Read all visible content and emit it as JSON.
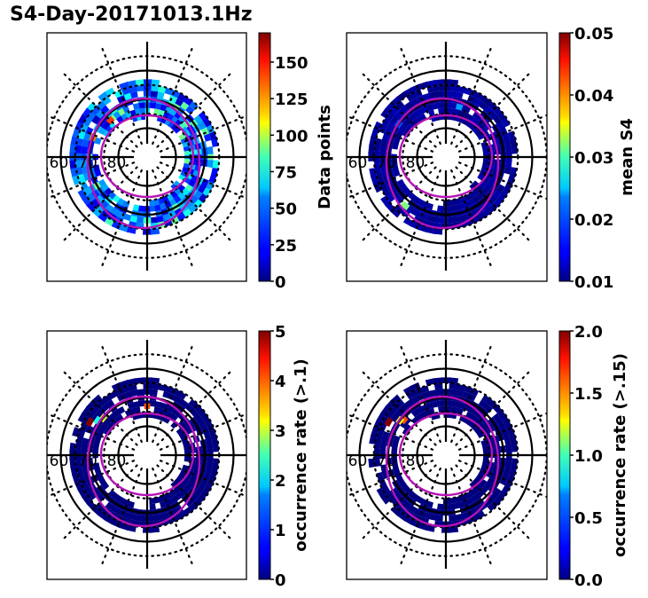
{
  "figure": {
    "title": "S4-Day-20171013.1Hz"
  },
  "chart_data": [
    {
      "type": "heatmap",
      "projection": "polar",
      "panel": "top-left",
      "title": "",
      "colormap": "jet",
      "colorbar": {
        "label": "Data points",
        "range": [
          0,
          170
        ],
        "ticks": [
          0,
          25,
          50,
          75,
          100,
          125,
          150
        ],
        "tick_labels": [
          "0",
          "25",
          "50",
          "75",
          "100",
          "125",
          "150"
        ]
      },
      "latitude_rings": [
        60,
        70,
        80
      ],
      "latitude_labels": [
        "60",
        "70",
        "80"
      ],
      "note": "Ring of bins at ~65-75 magnetic latitude, values mostly 10-80, a few up to ~140 near pre-noon",
      "sample_bins": [
        {
          "lat": 72,
          "mlt_deg": 135,
          "value": 140
        },
        {
          "lat": 70,
          "mlt_deg": 160,
          "value": 130
        },
        {
          "lat": 68,
          "mlt_deg": 270,
          "value": 75
        },
        {
          "lat": 66,
          "mlt_deg": 200,
          "value": 60
        },
        {
          "lat": 72,
          "mlt_deg": 40,
          "value": 80
        }
      ]
    },
    {
      "type": "heatmap",
      "projection": "polar",
      "panel": "top-right",
      "colormap": "jet",
      "colorbar": {
        "label": "mean S4",
        "range": [
          0.01,
          0.05
        ],
        "ticks": [
          0.01,
          0.02,
          0.03,
          0.04,
          0.05
        ],
        "tick_labels": [
          "0.01",
          "0.02",
          "0.03",
          "0.04",
          "0.05"
        ]
      },
      "latitude_rings": [
        60,
        70,
        80
      ],
      "latitude_labels": [
        "60",
        "70",
        "80"
      ],
      "note": "Mostly ~0.01; a few bins ~0.02 near noon and ~0.03 near 225 deg",
      "sample_bins": [
        {
          "lat": 72,
          "mlt_deg": 75,
          "value": 0.021
        },
        {
          "lat": 68,
          "mlt_deg": 230,
          "value": 0.03
        },
        {
          "lat": 70,
          "mlt_deg": 145,
          "value": 0.018
        }
      ]
    },
    {
      "type": "heatmap",
      "projection": "polar",
      "panel": "bottom-left",
      "colormap": "jet",
      "colorbar": {
        "label": "occurrence rate (>.1)",
        "range": [
          0,
          5
        ],
        "ticks": [
          0,
          1,
          2,
          3,
          4,
          5
        ],
        "tick_labels": [
          "0",
          "1",
          "2",
          "3",
          "4",
          "5"
        ]
      },
      "latitude_rings": [
        60,
        70,
        80
      ],
      "latitude_labels": [
        "60",
        "70",
        "80"
      ],
      "note": "Mostly 0; small patch near pre-noon with values 2-5; one bin ~4 at noon",
      "sample_bins": [
        {
          "lat": 73,
          "mlt_deg": 90,
          "value": 4.0
        },
        {
          "lat": 70,
          "mlt_deg": 140,
          "value": 3.0
        },
        {
          "lat": 69,
          "mlt_deg": 145,
          "value": 2.0
        },
        {
          "lat": 67,
          "mlt_deg": 150,
          "value": 5.0
        }
      ]
    },
    {
      "type": "heatmap",
      "projection": "polar",
      "panel": "bottom-right",
      "colormap": "jet",
      "colorbar": {
        "label": "occurrence rate (>.15)",
        "range": [
          0.0,
          2.0
        ],
        "ticks": [
          0.0,
          0.5,
          1.0,
          1.5,
          2.0
        ],
        "tick_labels": [
          "0.0",
          "0.5",
          "1.0",
          "1.5",
          "2.0"
        ]
      },
      "latitude_rings": [
        60,
        70,
        80
      ],
      "latitude_labels": [
        "60",
        "70",
        "80"
      ],
      "note": "Mostly 0; small patch near pre-noon with values ~1.2-2.0",
      "sample_bins": [
        {
          "lat": 71,
          "mlt_deg": 140,
          "value": 1.6
        },
        {
          "lat": 70,
          "mlt_deg": 143,
          "value": 1.2
        },
        {
          "lat": 67,
          "mlt_deg": 150,
          "value": 2.0
        }
      ]
    }
  ]
}
